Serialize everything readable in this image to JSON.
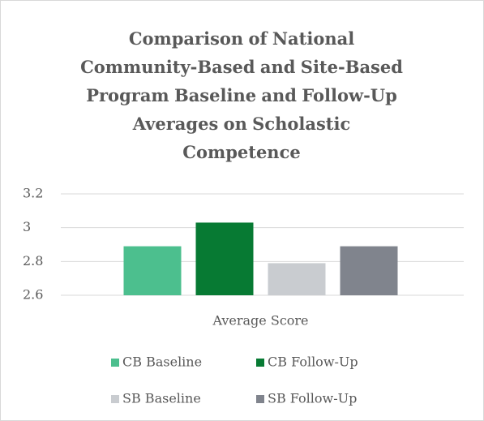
{
  "chart_data": {
    "type": "bar",
    "title": "Comparison of  National Community-Based and Site-Based Program Baseline and Follow-Up Averages on Scholastic Competence",
    "categories": [
      "Average Score"
    ],
    "series": [
      {
        "name": "CB Baseline",
        "color": "#4cbf8e",
        "values": [
          2.89
        ]
      },
      {
        "name": "CB Follow-Up",
        "color": "#077a33",
        "values": [
          3.03
        ]
      },
      {
        "name": "SB Baseline",
        "color": "#c9ccd0",
        "values": [
          2.79
        ]
      },
      {
        "name": "SB Follow-Up",
        "color": "#80848d",
        "values": [
          2.89
        ]
      }
    ],
    "ylim": [
      2.6,
      3.2
    ],
    "yticks": [
      2.6,
      2.8,
      3,
      3.2
    ],
    "grid": true,
    "legend": "bottom"
  }
}
